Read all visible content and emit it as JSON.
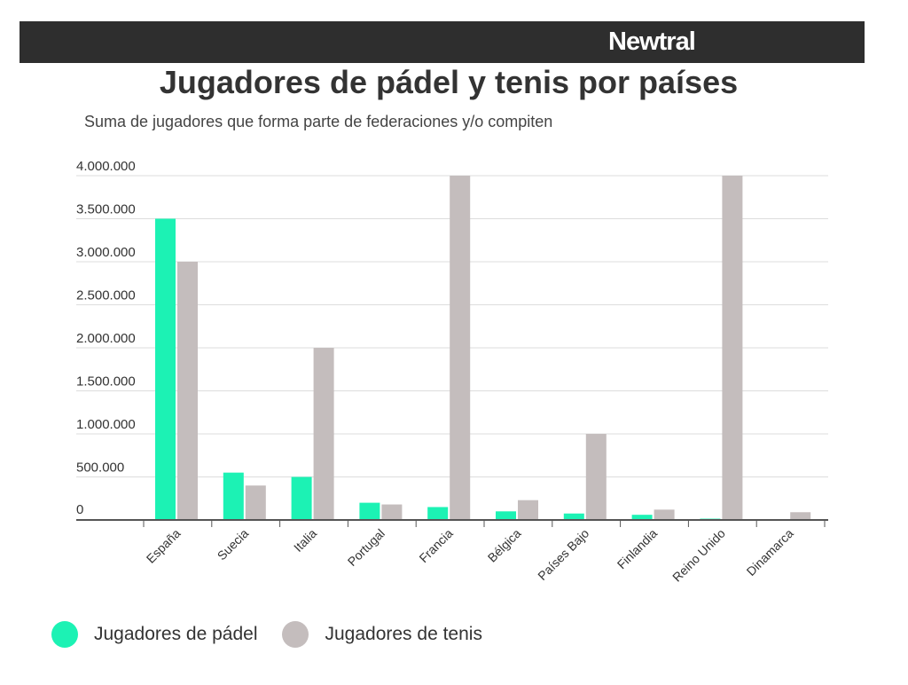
{
  "brand": {
    "logo_text": "Newtral"
  },
  "chart_data": {
    "type": "bar",
    "title": "Jugadores de pádel y tenis por países",
    "subtitle": "Suma de jugadores que forma parte de federaciones y/o compiten",
    "categories": [
      "España",
      "Suecia",
      "Italia",
      "Portugal",
      "Francia",
      "Bélgica",
      "Países Bajo",
      "Finlandia",
      "Reino Unido",
      "Dinamarca"
    ],
    "series": [
      {
        "name": "Jugadores de pádel",
        "color": "#1cf2b4",
        "values": [
          3500000,
          550000,
          500000,
          200000,
          150000,
          100000,
          75000,
          60000,
          15000,
          10000
        ]
      },
      {
        "name": "Jugadores de tenis",
        "color": "#c4bdbd",
        "values": [
          3000000,
          400000,
          2000000,
          180000,
          4000000,
          230000,
          1000000,
          120000,
          4000000,
          90000
        ]
      }
    ],
    "yticks": [
      0,
      500000,
      1000000,
      1500000,
      2000000,
      2500000,
      3000000,
      3500000,
      4000000
    ],
    "ytick_labels": [
      "0",
      "500.000",
      "1.000.000",
      "1.500.000",
      "2.000.000",
      "2.500.000",
      "3.000.000",
      "3.500.000",
      "4.000.000"
    ],
    "ylim": [
      0,
      4000000
    ],
    "grid": true,
    "legend_position": "bottom-left"
  }
}
